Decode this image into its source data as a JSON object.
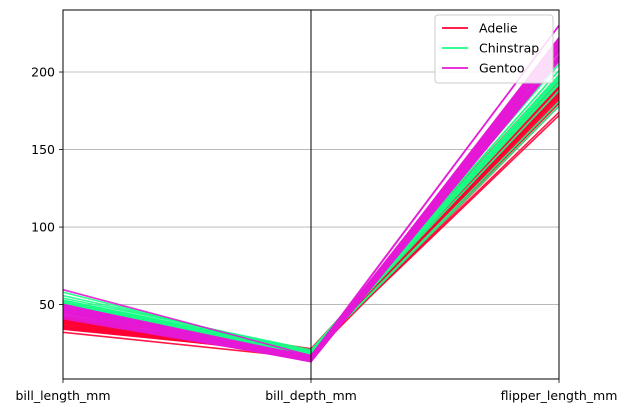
{
  "chart_data": {
    "type": "line",
    "subtype": "parallel-coordinates",
    "categories": [
      "bill_length_mm",
      "bill_depth_mm",
      "flipper_length_mm"
    ],
    "ylim": [
      2,
      240
    ],
    "yticks": [
      50,
      100,
      150,
      200
    ],
    "grid": true,
    "legend": {
      "placement": "top-right",
      "entries": [
        "Adelie",
        "Chinstrap",
        "Gentoo"
      ]
    },
    "series": [
      {
        "name": "Adelie",
        "color": "#ff0033",
        "lines": [
          [
            39.1,
            18.7,
            181
          ],
          [
            39.5,
            17.4,
            186
          ],
          [
            40.3,
            18.0,
            195
          ],
          [
            36.7,
            19.3,
            193
          ],
          [
            39.3,
            20.6,
            190
          ],
          [
            38.9,
            17.8,
            181
          ],
          [
            39.2,
            19.6,
            195
          ],
          [
            34.1,
            18.1,
            193
          ],
          [
            42.0,
            20.2,
            190
          ],
          [
            37.8,
            17.1,
            186
          ],
          [
            37.8,
            17.3,
            180
          ],
          [
            41.1,
            17.6,
            182
          ],
          [
            38.6,
            21.2,
            191
          ],
          [
            34.6,
            21.1,
            198
          ],
          [
            36.6,
            17.8,
            185
          ],
          [
            38.7,
            19.0,
            195
          ],
          [
            42.5,
            20.7,
            197
          ],
          [
            34.4,
            18.4,
            184
          ],
          [
            46.0,
            21.5,
            194
          ],
          [
            37.8,
            18.3,
            174
          ],
          [
            37.7,
            18.7,
            180
          ],
          [
            35.9,
            19.2,
            189
          ],
          [
            38.2,
            18.1,
            185
          ],
          [
            38.8,
            17.2,
            180
          ],
          [
            35.3,
            18.9,
            187
          ],
          [
            40.6,
            18.6,
            183
          ],
          [
            40.5,
            17.9,
            187
          ],
          [
            37.9,
            18.6,
            172
          ],
          [
            40.5,
            18.9,
            180
          ],
          [
            39.5,
            16.7,
            178
          ],
          [
            32.1,
            15.5,
            188
          ],
          [
            35.7,
            16.9,
            185
          ]
        ]
      },
      {
        "name": "Chinstrap",
        "color": "#17ff84",
        "lines": [
          [
            46.5,
            17.9,
            192
          ],
          [
            50.0,
            19.5,
            196
          ],
          [
            51.3,
            19.2,
            193
          ],
          [
            45.4,
            18.7,
            188
          ],
          [
            52.7,
            19.8,
            197
          ],
          [
            45.2,
            17.8,
            198
          ],
          [
            46.1,
            18.2,
            178
          ],
          [
            51.3,
            18.2,
            197
          ],
          [
            46.0,
            18.9,
            195
          ],
          [
            51.3,
            19.9,
            198
          ],
          [
            49.2,
            18.2,
            195
          ],
          [
            52.0,
            19.0,
            197
          ],
          [
            55.8,
            19.8,
            207
          ],
          [
            54.2,
            20.8,
            201
          ],
          [
            49.6,
            18.2,
            193
          ],
          [
            50.8,
            19.0,
            210
          ],
          [
            49.0,
            19.5,
            210
          ],
          [
            52.8,
            20.0,
            205
          ],
          [
            58.0,
            17.8,
            181
          ],
          [
            50.5,
            19.6,
            201
          ]
        ]
      },
      {
        "name": "Gentoo",
        "color": "#e418d6",
        "lines": [
          [
            46.1,
            13.2,
            211
          ],
          [
            50.0,
            16.3,
            230
          ],
          [
            48.7,
            14.1,
            210
          ],
          [
            50.0,
            15.2,
            218
          ],
          [
            47.6,
            14.5,
            215
          ],
          [
            46.5,
            13.5,
            210
          ],
          [
            45.4,
            14.6,
            211
          ],
          [
            46.7,
            15.3,
            219
          ],
          [
            43.3,
            13.4,
            209
          ],
          [
            46.8,
            15.4,
            215
          ],
          [
            40.9,
            13.7,
            214
          ],
          [
            49.0,
            16.1,
            216
          ],
          [
            45.5,
            13.7,
            214
          ],
          [
            48.4,
            14.6,
            213
          ],
          [
            45.8,
            14.6,
            210
          ],
          [
            49.3,
            15.7,
            217
          ],
          [
            42.0,
            13.5,
            210
          ],
          [
            49.2,
            15.2,
            221
          ],
          [
            46.2,
            14.5,
            209
          ],
          [
            48.7,
            15.1,
            222
          ],
          [
            50.2,
            14.3,
            218
          ],
          [
            45.1,
            14.5,
            215
          ],
          [
            46.5,
            14.5,
            213
          ],
          [
            46.3,
            15.8,
            215
          ],
          [
            42.9,
            13.1,
            215
          ],
          [
            46.1,
            15.1,
            215
          ],
          [
            47.8,
            15.0,
            215
          ],
          [
            48.2,
            14.3,
            210
          ],
          [
            50.0,
            15.3,
            220
          ],
          [
            47.3,
            15.3,
            222
          ],
          [
            42.8,
            14.2,
            209
          ],
          [
            45.1,
            14.5,
            207
          ],
          [
            59.6,
            17.0,
            230
          ],
          [
            49.1,
            14.8,
            220
          ],
          [
            48.4,
            16.3,
            220
          ],
          [
            42.6,
            13.7,
            213
          ],
          [
            44.4,
            17.3,
            219
          ],
          [
            44.0,
            13.6,
            208
          ],
          [
            48.7,
            15.7,
            208
          ],
          [
            42.7,
            13.7,
            208
          ]
        ]
      }
    ]
  }
}
